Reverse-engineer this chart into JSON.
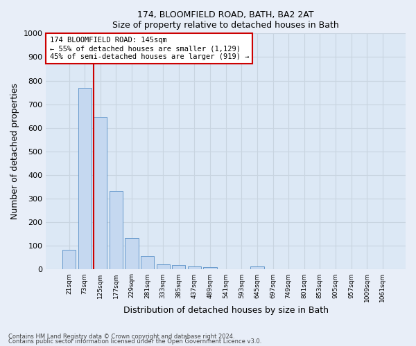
{
  "title1": "174, BLOOMFIELD ROAD, BATH, BA2 2AT",
  "title2": "Size of property relative to detached houses in Bath",
  "xlabel": "Distribution of detached houses by size in Bath",
  "ylabel": "Number of detached properties",
  "bar_labels": [
    "21sqm",
    "73sqm",
    "125sqm",
    "177sqm",
    "229sqm",
    "281sqm",
    "333sqm",
    "385sqm",
    "437sqm",
    "489sqm",
    "541sqm",
    "593sqm",
    "645sqm",
    "697sqm",
    "749sqm",
    "801sqm",
    "853sqm",
    "905sqm",
    "957sqm",
    "1009sqm",
    "1061sqm"
  ],
  "bar_values": [
    83,
    770,
    645,
    332,
    134,
    58,
    23,
    20,
    13,
    9,
    0,
    0,
    12,
    0,
    0,
    0,
    0,
    0,
    0,
    0,
    0
  ],
  "bar_color": "#c5d8f0",
  "bar_edge_color": "#6699cc",
  "annotation_text": "174 BLOOMFIELD ROAD: 145sqm\n← 55% of detached houses are smaller (1,129)\n45% of semi-detached houses are larger (919) →",
  "annotation_box_color": "#ffffff",
  "annotation_box_edge": "#cc0000",
  "redline_color": "#cc0000",
  "ylim": [
    0,
    1000
  ],
  "yticks": [
    0,
    100,
    200,
    300,
    400,
    500,
    600,
    700,
    800,
    900,
    1000
  ],
  "footnote1": "Contains HM Land Registry data © Crown copyright and database right 2024.",
  "footnote2": "Contains public sector information licensed under the Open Government Licence v3.0.",
  "bg_color": "#e8eef8",
  "plot_bg_color": "#dce8f5",
  "grid_color": "#c8d4e0"
}
